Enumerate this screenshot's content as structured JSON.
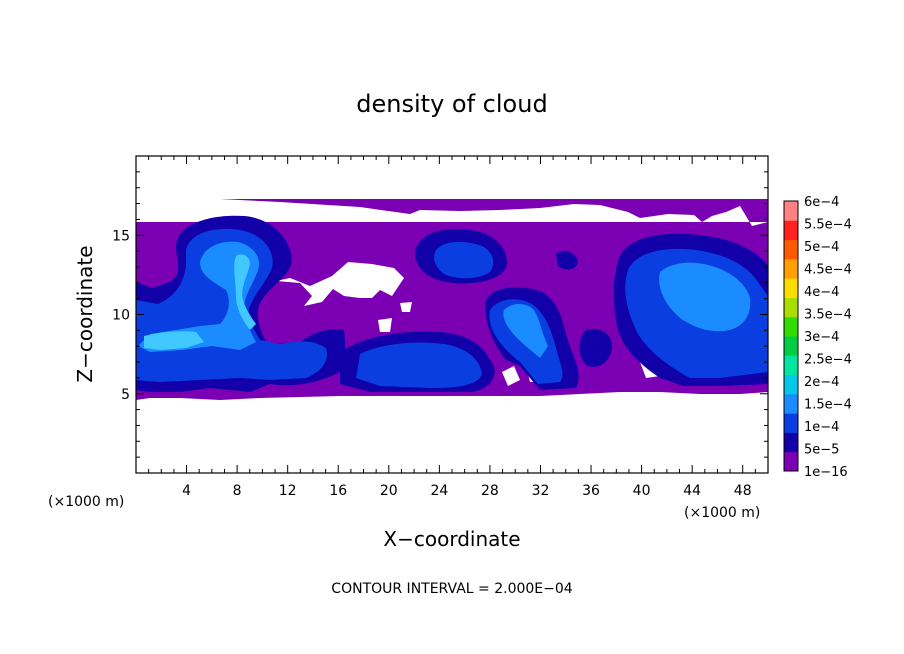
{
  "chart_data": {
    "type": "heatmap",
    "title": "density of cloud",
    "xlabel": "X−coordinate",
    "ylabel": "Z−coordinate",
    "x_unit": "(×1000 m)",
    "z_unit": "(×1000 m)",
    "xlim": [
      0,
      50
    ],
    "ylim": [
      0,
      20
    ],
    "x_ticks": [
      4,
      8,
      12,
      16,
      20,
      24,
      28,
      32,
      36,
      40,
      44,
      48
    ],
    "y_ticks": [
      5,
      10,
      15
    ],
    "colorbar": {
      "levels": [
        "1e−16",
        "5e−5",
        "1e−4",
        "1.5e−4",
        "2e−4",
        "2.5e−4",
        "3e−4",
        "3.5e−4",
        "4e−4",
        "4.5e−4",
        "5e−4",
        "5.5e−4",
        "6e−4"
      ],
      "colors": [
        "#7b00b4",
        "#1200a8",
        "#0a3ee0",
        "#1a8cff",
        "#00c8e6",
        "#00e6a0",
        "#00cc44",
        "#33dd00",
        "#aadd00",
        "#ffdd00",
        "#ffa000",
        "#ff5a00",
        "#ff2020",
        "#ff8080"
      ]
    },
    "contour_interval": "CONTOUR INTERVAL = 2.000E−04",
    "cloud_layer_z": [
      5,
      17.4
    ]
  }
}
